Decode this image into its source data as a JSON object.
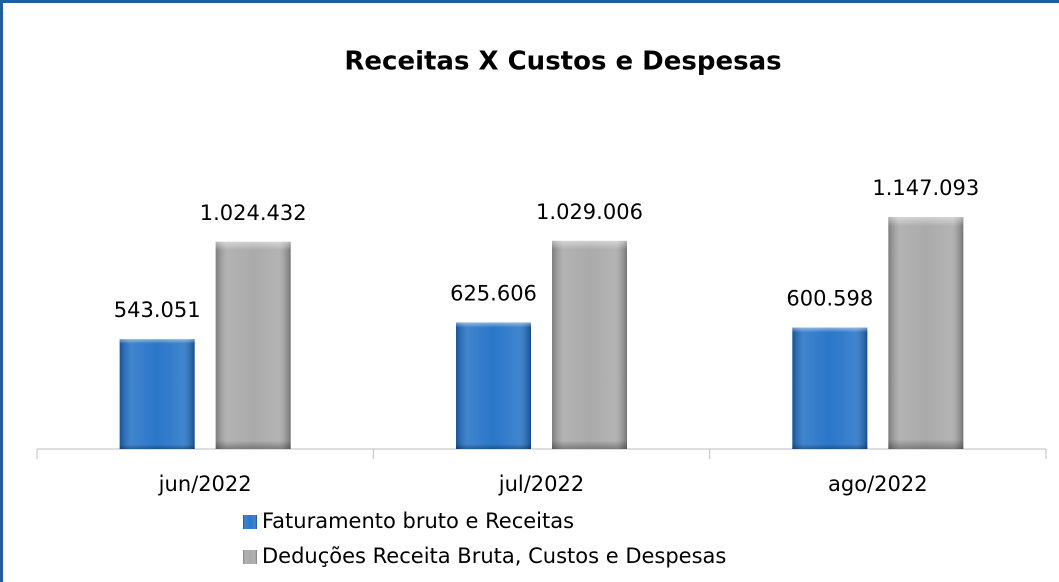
{
  "chart_data": {
    "type": "bar",
    "title": "Receitas X Custos e Despesas",
    "categories": [
      "jun/2022",
      "jul/2022",
      "ago/2022"
    ],
    "series": [
      {
        "name": "Faturamento bruto e Receitas",
        "color": "#1f6fc6",
        "values": [
          543051,
          625606,
          600598
        ],
        "value_labels": [
          "543.051",
          "625.606",
          "600.598"
        ]
      },
      {
        "name": "Deduções Receita Bruta, Custos e Despesas",
        "color": "#a6a6a6",
        "values": [
          1024432,
          1029006,
          1147093
        ],
        "value_labels": [
          "1.024.432",
          "1.029.006",
          "1.147.093"
        ]
      }
    ],
    "legend": "bottom"
  }
}
